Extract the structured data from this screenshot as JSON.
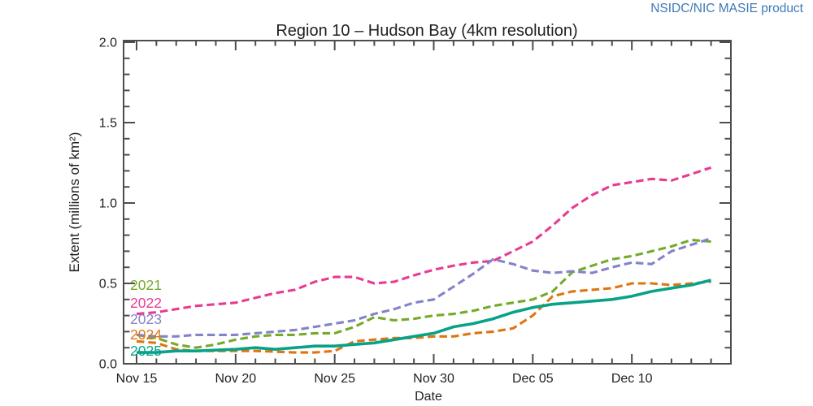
{
  "header": {
    "credit": "NSIDC/NIC MASIE product"
  },
  "colors": {
    "credit_blue": "#3d7ab8",
    "axis": "#4d4d4d",
    "text": "#1f1f1f",
    "background": "#ffffff"
  },
  "chart_data": {
    "type": "line",
    "title": "Region 10 – Hudson Bay (4km resolution)",
    "xlabel": "Date",
    "ylabel": "Extent (millions of km²)",
    "grid": false,
    "legend_position": "inside-left",
    "xlim_days": [
      -0.65,
      30
    ],
    "ylim": [
      0.0,
      2.01
    ],
    "x_tick_labels": [
      "Nov 15",
      "Nov 20",
      "Nov 25",
      "Nov 30",
      "Dec 05",
      "Dec 10"
    ],
    "x_tick_days": [
      0,
      5,
      10,
      15,
      20,
      25
    ],
    "x_minor_tick_interval_days": 1,
    "y_tick_labels": [
      "0.0",
      "0.5",
      "1.0",
      "1.5",
      "2.0"
    ],
    "y_ticks": [
      0.0,
      0.5,
      1.0,
      1.5,
      2.0
    ],
    "y_minor_tick_interval": 0.1,
    "dates": [
      "Nov 15",
      "Nov 16",
      "Nov 17",
      "Nov 18",
      "Nov 19",
      "Nov 20",
      "Nov 21",
      "Nov 22",
      "Nov 23",
      "Nov 24",
      "Nov 25",
      "Nov 26",
      "Nov 27",
      "Nov 28",
      "Nov 29",
      "Nov 30",
      "Dec 01",
      "Dec 02",
      "Dec 03",
      "Dec 04",
      "Dec 05",
      "Dec 06",
      "Dec 07",
      "Dec 08",
      "Dec 09",
      "Dec 10",
      "Dec 11",
      "Dec 12",
      "Dec 13",
      "Dec 14"
    ],
    "series": [
      {
        "name": "2021",
        "color": "#74aa29",
        "style": "dashed",
        "values": [
          0.18,
          0.16,
          0.12,
          0.1,
          0.12,
          0.15,
          0.17,
          0.18,
          0.18,
          0.19,
          0.19,
          0.23,
          0.29,
          0.27,
          0.28,
          0.3,
          0.31,
          0.33,
          0.36,
          0.38,
          0.4,
          0.45,
          0.57,
          0.61,
          0.65,
          0.67,
          0.7,
          0.73,
          0.77,
          0.76
        ]
      },
      {
        "name": "2022",
        "color": "#e93a92",
        "style": "dashed",
        "values": [
          0.31,
          0.32,
          0.34,
          0.36,
          0.37,
          0.38,
          0.41,
          0.44,
          0.46,
          0.51,
          0.54,
          0.54,
          0.5,
          0.51,
          0.55,
          0.585,
          0.61,
          0.63,
          0.64,
          0.7,
          0.76,
          0.86,
          0.97,
          1.05,
          1.11,
          1.13,
          1.15,
          1.14,
          1.18,
          1.22
        ]
      },
      {
        "name": "2023",
        "color": "#8383c9",
        "style": "dashed",
        "values": [
          0.18,
          0.17,
          0.17,
          0.18,
          0.18,
          0.18,
          0.19,
          0.2,
          0.21,
          0.23,
          0.25,
          0.27,
          0.31,
          0.34,
          0.38,
          0.4,
          0.48,
          0.56,
          0.65,
          0.62,
          0.58,
          0.565,
          0.575,
          0.565,
          0.6,
          0.63,
          0.62,
          0.7,
          0.74,
          0.78
        ]
      },
      {
        "name": "2024",
        "color": "#e0740f",
        "style": "dashed",
        "values": [
          0.14,
          0.13,
          0.09,
          0.08,
          0.08,
          0.08,
          0.08,
          0.075,
          0.07,
          0.07,
          0.08,
          0.14,
          0.15,
          0.16,
          0.16,
          0.17,
          0.17,
          0.19,
          0.2,
          0.22,
          0.3,
          0.42,
          0.45,
          0.46,
          0.47,
          0.5,
          0.5,
          0.49,
          0.5,
          0.51
        ]
      },
      {
        "name": "2025",
        "color": "#07a287",
        "style": "solid",
        "values": [
          0.07,
          0.07,
          0.08,
          0.08,
          0.085,
          0.09,
          0.1,
          0.09,
          0.1,
          0.11,
          0.11,
          0.12,
          0.13,
          0.15,
          0.17,
          0.19,
          0.23,
          0.25,
          0.28,
          0.32,
          0.35,
          0.37,
          0.38,
          0.39,
          0.4,
          0.42,
          0.45,
          0.47,
          0.49,
          0.52
        ]
      }
    ],
    "legend": [
      {
        "label": "2021",
        "color": "#74aa29"
      },
      {
        "label": "2022",
        "color": "#e93a92"
      },
      {
        "label": "2023",
        "color": "#8383c9"
      },
      {
        "label": "2024",
        "color": "#e0740f"
      },
      {
        "label": "2025",
        "color": "#07a287"
      }
    ]
  }
}
